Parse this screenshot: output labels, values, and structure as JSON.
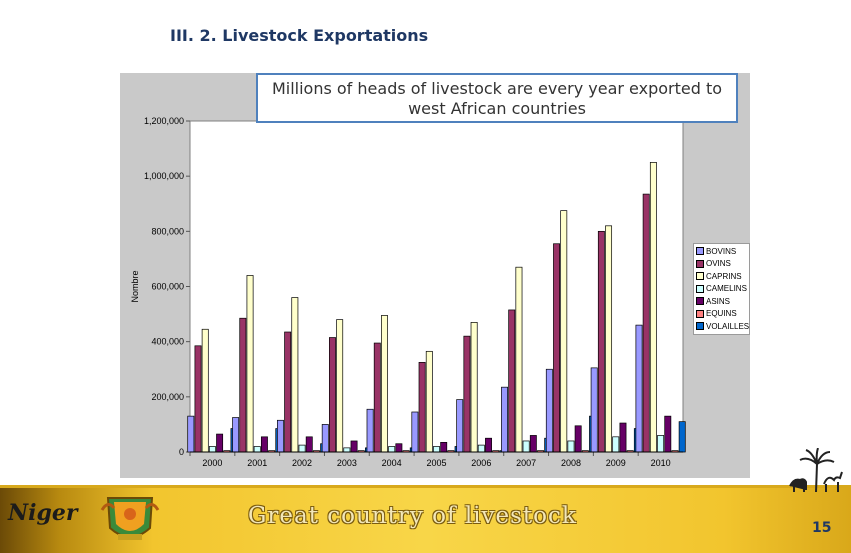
{
  "slide": {
    "title": "III. 2. Livestock Exportations",
    "callout": "Millions of heads of livestock are every year exported to west African countries",
    "page_number": "15"
  },
  "footer": {
    "brand": "Niger",
    "tagline": "Great country of livestock",
    "emblem_icon": "niger-coat-of-arms-icon",
    "scene_icon": "palm-tree-camel-goat-icon"
  },
  "chart_data": {
    "type": "bar",
    "ylabel": "Nombre",
    "ylim": [
      0,
      1200000
    ],
    "yticks": [
      0,
      200000,
      400000,
      600000,
      800000,
      1000000,
      1200000
    ],
    "ytick_labels": [
      "0",
      "200,000",
      "400,000",
      "600,000",
      "800,000",
      "1,000,000",
      "1,200,000"
    ],
    "categories": [
      "2000",
      "2001",
      "2002",
      "2003",
      "2004",
      "2005",
      "2006",
      "2007",
      "2008",
      "2009",
      "2010"
    ],
    "legend_position": "right",
    "series": [
      {
        "name": "BOVINS",
        "color": "#9999ff",
        "values": [
          130000,
          125000,
          115000,
          100000,
          155000,
          145000,
          190000,
          235000,
          300000,
          305000,
          460000
        ]
      },
      {
        "name": "OVINS",
        "color": "#993366",
        "values": [
          385000,
          485000,
          435000,
          415000,
          395000,
          325000,
          420000,
          515000,
          755000,
          800000,
          935000
        ]
      },
      {
        "name": "CAPRINS",
        "color": "#ffffcc",
        "values": [
          445000,
          640000,
          560000,
          480000,
          495000,
          365000,
          470000,
          670000,
          875000,
          820000,
          1050000
        ]
      },
      {
        "name": "CAMELINS",
        "color": "#ccffff",
        "values": [
          20000,
          20000,
          25000,
          15000,
          20000,
          20000,
          25000,
          40000,
          40000,
          55000,
          60000
        ]
      },
      {
        "name": "ASINS",
        "color": "#660066",
        "values": [
          65000,
          55000,
          55000,
          40000,
          30000,
          35000,
          50000,
          60000,
          95000,
          105000,
          130000
        ]
      },
      {
        "name": "EQUINS",
        "color": "#ff8080",
        "values": [
          5000,
          5000,
          5000,
          5000,
          5000,
          5000,
          5000,
          5000,
          5000,
          5000,
          5000
        ]
      },
      {
        "name": "VOLAILLES",
        "color": "#0066cc",
        "values": [
          85000,
          85000,
          30000,
          15000,
          15000,
          20000,
          5000,
          50000,
          130000,
          85000,
          110000
        ]
      }
    ]
  }
}
